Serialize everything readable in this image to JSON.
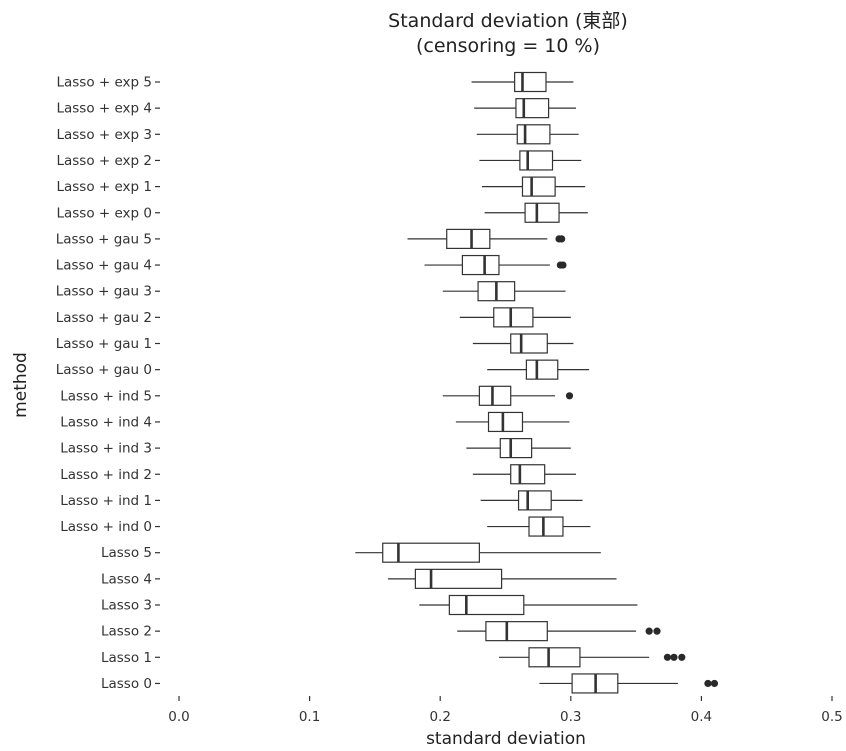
{
  "chart_data": {
    "type": "boxplot",
    "title": "Standard deviation (東部)",
    "subtitle": "(censoring = 10 %)",
    "xlabel": "standard deviation",
    "ylabel": "method",
    "xlim": [
      0.0,
      0.5
    ],
    "xticks": [
      0.0,
      0.1,
      0.2,
      0.3,
      0.4,
      0.5
    ],
    "xtick_labels": [
      "0.0",
      "0.1",
      "0.2",
      "0.3",
      "0.4",
      "0.5"
    ],
    "grid": false,
    "categories": [
      "Lasso + exp 5",
      "Lasso + exp 4",
      "Lasso + exp 3",
      "Lasso + exp 2",
      "Lasso + exp 1",
      "Lasso + exp 0",
      "Lasso + gau 5",
      "Lasso + gau 4",
      "Lasso + gau 3",
      "Lasso + gau 2",
      "Lasso + gau 1",
      "Lasso + gau 0",
      "Lasso + ind 5",
      "Lasso + ind 4",
      "Lasso + ind 3",
      "Lasso + ind 2",
      "Lasso + ind 1",
      "Lasso + ind 0",
      "Lasso 5",
      "Lasso 4",
      "Lasso 3",
      "Lasso 2",
      "Lasso 1",
      "Lasso 0"
    ],
    "boxes": [
      {
        "label": "Lasso + exp 5",
        "whisker_low": 0.224,
        "q1": 0.257,
        "median": 0.263,
        "q3": 0.281,
        "whisker_high": 0.302,
        "outliers": []
      },
      {
        "label": "Lasso + exp 4",
        "whisker_low": 0.226,
        "q1": 0.258,
        "median": 0.264,
        "q3": 0.283,
        "whisker_high": 0.304,
        "outliers": []
      },
      {
        "label": "Lasso + exp 3",
        "whisker_low": 0.228,
        "q1": 0.259,
        "median": 0.265,
        "q3": 0.284,
        "whisker_high": 0.306,
        "outliers": []
      },
      {
        "label": "Lasso + exp 2",
        "whisker_low": 0.23,
        "q1": 0.261,
        "median": 0.267,
        "q3": 0.286,
        "whisker_high": 0.308,
        "outliers": []
      },
      {
        "label": "Lasso + exp 1",
        "whisker_low": 0.232,
        "q1": 0.263,
        "median": 0.27,
        "q3": 0.288,
        "whisker_high": 0.311,
        "outliers": []
      },
      {
        "label": "Lasso + exp 0",
        "whisker_low": 0.234,
        "q1": 0.265,
        "median": 0.274,
        "q3": 0.291,
        "whisker_high": 0.313,
        "outliers": []
      },
      {
        "label": "Lasso + gau 5",
        "whisker_low": 0.175,
        "q1": 0.205,
        "median": 0.224,
        "q3": 0.238,
        "whisker_high": 0.282,
        "outliers": [
          0.291,
          0.293
        ]
      },
      {
        "label": "Lasso + gau 4",
        "whisker_low": 0.188,
        "q1": 0.217,
        "median": 0.234,
        "q3": 0.245,
        "whisker_high": 0.284,
        "outliers": [
          0.292,
          0.294
        ]
      },
      {
        "label": "Lasso + gau 3",
        "whisker_low": 0.202,
        "q1": 0.229,
        "median": 0.243,
        "q3": 0.257,
        "whisker_high": 0.296,
        "outliers": []
      },
      {
        "label": "Lasso + gau 2",
        "whisker_low": 0.215,
        "q1": 0.241,
        "median": 0.254,
        "q3": 0.271,
        "whisker_high": 0.3,
        "outliers": []
      },
      {
        "label": "Lasso + gau 1",
        "whisker_low": 0.225,
        "q1": 0.254,
        "median": 0.262,
        "q3": 0.282,
        "whisker_high": 0.302,
        "outliers": []
      },
      {
        "label": "Lasso + gau 0",
        "whisker_low": 0.236,
        "q1": 0.266,
        "median": 0.274,
        "q3": 0.29,
        "whisker_high": 0.314,
        "outliers": []
      },
      {
        "label": "Lasso + ind 5",
        "whisker_low": 0.202,
        "q1": 0.23,
        "median": 0.24,
        "q3": 0.254,
        "whisker_high": 0.288,
        "outliers": [
          0.299
        ]
      },
      {
        "label": "Lasso + ind 4",
        "whisker_low": 0.212,
        "q1": 0.237,
        "median": 0.248,
        "q3": 0.263,
        "whisker_high": 0.299,
        "outliers": []
      },
      {
        "label": "Lasso + ind 3",
        "whisker_low": 0.22,
        "q1": 0.246,
        "median": 0.254,
        "q3": 0.27,
        "whisker_high": 0.3,
        "outliers": []
      },
      {
        "label": "Lasso + ind 2",
        "whisker_low": 0.225,
        "q1": 0.254,
        "median": 0.261,
        "q3": 0.28,
        "whisker_high": 0.304,
        "outliers": []
      },
      {
        "label": "Lasso + ind 1",
        "whisker_low": 0.231,
        "q1": 0.26,
        "median": 0.267,
        "q3": 0.285,
        "whisker_high": 0.309,
        "outliers": []
      },
      {
        "label": "Lasso + ind 0",
        "whisker_low": 0.236,
        "q1": 0.268,
        "median": 0.279,
        "q3": 0.294,
        "whisker_high": 0.315,
        "outliers": []
      },
      {
        "label": "Lasso 5",
        "whisker_low": 0.135,
        "q1": 0.156,
        "median": 0.168,
        "q3": 0.23,
        "whisker_high": 0.323,
        "outliers": []
      },
      {
        "label": "Lasso 4",
        "whisker_low": 0.16,
        "q1": 0.181,
        "median": 0.193,
        "q3": 0.247,
        "whisker_high": 0.335,
        "outliers": []
      },
      {
        "label": "Lasso 3",
        "whisker_low": 0.184,
        "q1": 0.207,
        "median": 0.22,
        "q3": 0.264,
        "whisker_high": 0.351,
        "outliers": []
      },
      {
        "label": "Lasso 2",
        "whisker_low": 0.213,
        "q1": 0.235,
        "median": 0.251,
        "q3": 0.282,
        "whisker_high": 0.35,
        "outliers": [
          0.36,
          0.366
        ]
      },
      {
        "label": "Lasso 1",
        "whisker_low": 0.245,
        "q1": 0.268,
        "median": 0.283,
        "q3": 0.307,
        "whisker_high": 0.36,
        "outliers": [
          0.374,
          0.379,
          0.385
        ]
      },
      {
        "label": "Lasso 0",
        "whisker_low": 0.276,
        "q1": 0.301,
        "median": 0.319,
        "q3": 0.336,
        "whisker_high": 0.382,
        "outliers": [
          0.405,
          0.41
        ]
      }
    ]
  }
}
